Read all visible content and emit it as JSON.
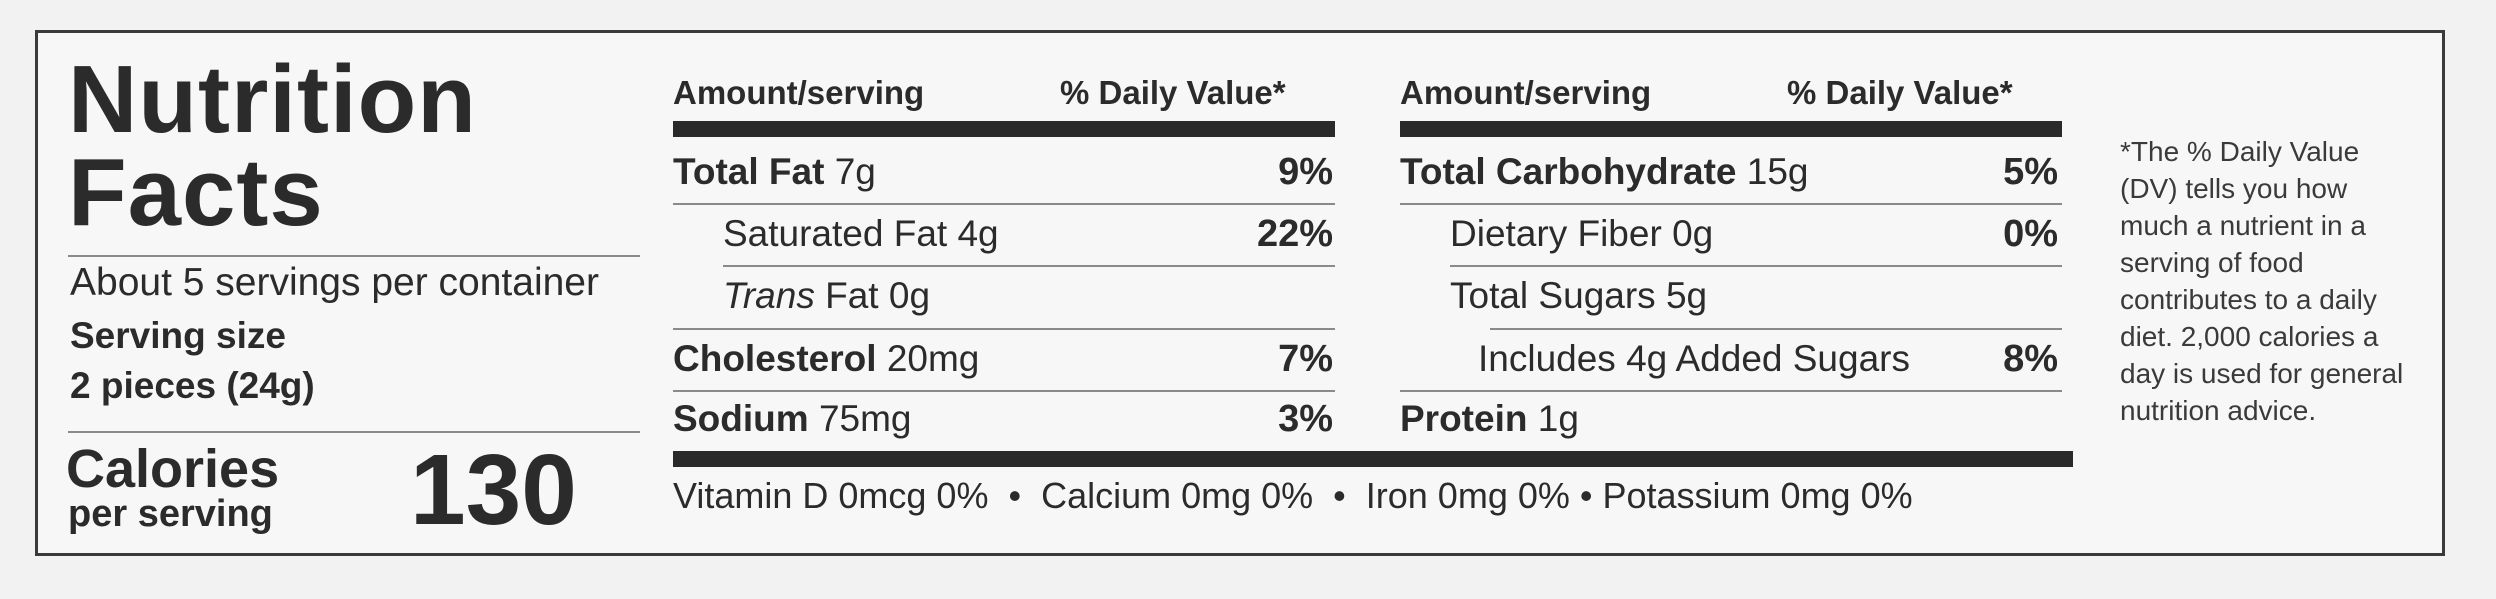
{
  "title": {
    "line1": "Nutrition",
    "line2": "Facts"
  },
  "servings_per_container": "About 5 servings per container",
  "serving_size": {
    "label": "Serving size",
    "value": "2 pieces (24g)"
  },
  "calories": {
    "label1": "Calories",
    "label2": "per serving",
    "value": "130"
  },
  "headers": {
    "amount": "Amount/serving",
    "dv": "% Daily Value*"
  },
  "left_rows": [
    {
      "name": "Total Fat",
      "amount": "7g",
      "dv": "9%",
      "bold": true
    },
    {
      "name": "Saturated Fat",
      "amount": "4g",
      "dv": "22%",
      "bold": false
    },
    {
      "name": "Trans",
      "amount": "Fat 0g",
      "dv": "",
      "bold": false
    },
    {
      "name": "Cholesterol",
      "amount": "20mg",
      "dv": "7%",
      "bold": true
    },
    {
      "name": "Sodium",
      "amount": "75mg",
      "dv": "3%",
      "bold": true
    }
  ],
  "right_rows": [
    {
      "name": "Total Carbohydrate",
      "amount": "15g",
      "dv": "5%",
      "bold": true
    },
    {
      "name": "Dietary Fiber",
      "amount": "0g",
      "dv": "0%",
      "bold": false
    },
    {
      "name": "Total Sugars",
      "amount": "5g",
      "dv": "",
      "bold": false
    },
    {
      "name": "Includes 4g Added Sugars",
      "amount": "",
      "dv": "8%",
      "bold": false
    },
    {
      "name": "Protein",
      "amount": "1g",
      "dv": "",
      "bold": true
    }
  ],
  "vitamins": "Vitamin D 0mcg 0%  •  Calcium 0mg 0%  •  Iron 0mg 0% • Potassium 0mg 0%",
  "footnote": "*The % Daily Value (DV) tells you how much a nutrient in a serving of food contributes to a daily diet. 2,000 calories a day is used for general nutrition advice."
}
